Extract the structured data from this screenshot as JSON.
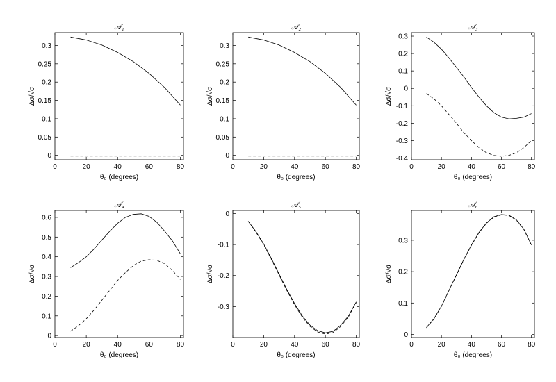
{
  "chart_data": [
    {
      "type": "line",
      "title": "𝒜₁",
      "xlabel": "θ₀ (degrees)",
      "ylabel": "Δσ/√σ",
      "xlim": [
        0,
        82
      ],
      "ylim": [
        -0.012,
        0.335
      ],
      "xticks": [
        0,
        20,
        40,
        60,
        80
      ],
      "yticks": [
        0,
        0.05,
        0.1,
        0.15,
        0.2,
        0.25,
        0.3
      ],
      "ytick_labels": [
        "0",
        "0.05",
        "0.1",
        "0.15",
        "0.2",
        "0.25",
        "0.3"
      ],
      "grid": false,
      "series": [
        {
          "style": "solid",
          "x": [
            10,
            20,
            30,
            40,
            50,
            60,
            70,
            80
          ],
          "y": [
            0.323,
            0.315,
            0.301,
            0.281,
            0.256,
            0.224,
            0.185,
            0.137
          ]
        },
        {
          "style": "dashed",
          "x": [
            10,
            80
          ],
          "y": [
            -0.002,
            -0.002
          ]
        }
      ]
    },
    {
      "type": "line",
      "title": "𝒜₂",
      "xlabel": "θ₀ (degrees)",
      "ylabel": "Δσ/√σ",
      "xlim": [
        0,
        82
      ],
      "ylim": [
        -0.012,
        0.335
      ],
      "xticks": [
        0,
        20,
        40,
        60,
        80
      ],
      "yticks": [
        0,
        0.05,
        0.1,
        0.15,
        0.2,
        0.25,
        0.3
      ],
      "ytick_labels": [
        "0",
        "0.05",
        "0.1",
        "0.15",
        "0.2",
        "0.25",
        "0.3"
      ],
      "grid": false,
      "series": [
        {
          "style": "solid",
          "x": [
            10,
            20,
            30,
            40,
            50,
            60,
            70,
            80
          ],
          "y": [
            0.323,
            0.315,
            0.301,
            0.281,
            0.256,
            0.224,
            0.185,
            0.137
          ]
        },
        {
          "style": "dashed",
          "x": [
            10,
            80
          ],
          "y": [
            -0.002,
            -0.002
          ]
        }
      ]
    },
    {
      "type": "line",
      "title": "𝒜₃",
      "xlabel": "θ₀ (degrees)",
      "ylabel": "Δσ/√σ",
      "xlim": [
        0,
        82
      ],
      "ylim": [
        -0.41,
        0.32
      ],
      "xticks": [
        0,
        20,
        40,
        60,
        80
      ],
      "yticks": [
        -0.4,
        -0.3,
        -0.2,
        -0.1,
        0,
        0.1,
        0.2,
        0.3
      ],
      "ytick_labels": [
        "-0.4",
        "-0.3",
        "-0.2",
        "-0.1",
        "0",
        "0.1",
        "0.2",
        "0.3"
      ],
      "grid": false,
      "series": [
        {
          "style": "solid",
          "x": [
            10,
            15,
            20,
            25,
            30,
            35,
            40,
            45,
            50,
            55,
            60,
            65,
            70,
            75,
            80
          ],
          "y": [
            0.295,
            0.265,
            0.225,
            0.175,
            0.12,
            0.065,
            0.005,
            -0.05,
            -0.1,
            -0.14,
            -0.165,
            -0.175,
            -0.172,
            -0.165,
            -0.145
          ]
        },
        {
          "style": "dashed",
          "x": [
            10,
            15,
            20,
            25,
            30,
            35,
            40,
            45,
            50,
            55,
            60,
            65,
            70,
            75,
            80
          ],
          "y": [
            -0.03,
            -0.06,
            -0.1,
            -0.15,
            -0.2,
            -0.255,
            -0.3,
            -0.34,
            -0.37,
            -0.385,
            -0.39,
            -0.385,
            -0.37,
            -0.34,
            -0.3
          ]
        }
      ]
    },
    {
      "type": "line",
      "title": "𝒜₄",
      "xlabel": "θ₀ (degrees)",
      "ylabel": "Δσ/√σ",
      "xlim": [
        0,
        82
      ],
      "ylim": [
        -0.01,
        0.635
      ],
      "xticks": [
        0,
        20,
        40,
        60,
        80
      ],
      "yticks": [
        0,
        0.1,
        0.2,
        0.3,
        0.4,
        0.5,
        0.6
      ],
      "ytick_labels": [
        "0",
        "0.1",
        "0.2",
        "0.3",
        "0.4",
        "0.5",
        "0.6"
      ],
      "grid": false,
      "series": [
        {
          "style": "solid",
          "x": [
            10,
            15,
            20,
            25,
            30,
            35,
            40,
            45,
            50,
            55,
            60,
            65,
            70,
            75,
            80
          ],
          "y": [
            0.345,
            0.37,
            0.4,
            0.44,
            0.485,
            0.53,
            0.57,
            0.6,
            0.615,
            0.618,
            0.605,
            0.575,
            0.53,
            0.48,
            0.415
          ]
        },
        {
          "style": "dashed",
          "x": [
            10,
            15,
            20,
            25,
            30,
            35,
            40,
            45,
            50,
            55,
            60,
            65,
            70,
            75,
            80
          ],
          "y": [
            0.022,
            0.05,
            0.085,
            0.13,
            0.18,
            0.23,
            0.28,
            0.32,
            0.355,
            0.378,
            0.385,
            0.382,
            0.365,
            0.33,
            0.285
          ]
        }
      ]
    },
    {
      "type": "line",
      "title": "𝒜₅",
      "xlabel": "θ₀ (degrees)",
      "ylabel": "Δσ/√σ",
      "xlim": [
        0,
        82
      ],
      "ylim": [
        -0.4,
        0.01
      ],
      "xticks": [
        0,
        20,
        40,
        60,
        80
      ],
      "yticks": [
        -0.3,
        -0.2,
        -0.1,
        0
      ],
      "ytick_labels": [
        "-0.3",
        "-0.2",
        "-0.1",
        "0"
      ],
      "grid": false,
      "series": [
        {
          "style": "solid",
          "x": [
            10,
            15,
            20,
            25,
            30,
            35,
            40,
            45,
            50,
            55,
            60,
            65,
            70,
            75,
            80
          ],
          "y": [
            -0.025,
            -0.058,
            -0.098,
            -0.145,
            -0.195,
            -0.245,
            -0.29,
            -0.33,
            -0.36,
            -0.378,
            -0.385,
            -0.38,
            -0.36,
            -0.33,
            -0.285
          ]
        },
        {
          "style": "dashed",
          "x": [
            10,
            15,
            20,
            25,
            30,
            35,
            40,
            45,
            50,
            55,
            60,
            65,
            70,
            75,
            80
          ],
          "y": [
            -0.025,
            -0.06,
            -0.1,
            -0.148,
            -0.198,
            -0.248,
            -0.294,
            -0.334,
            -0.364,
            -0.382,
            -0.389,
            -0.384,
            -0.364,
            -0.333,
            -0.287
          ]
        }
      ]
    },
    {
      "type": "line",
      "title": "𝒜₆",
      "xlabel": "θ₀ (degrees)",
      "ylabel": "Δσ/√σ",
      "xlim": [
        0,
        82
      ],
      "ylim": [
        -0.01,
        0.395
      ],
      "xticks": [
        0,
        20,
        40,
        60,
        80
      ],
      "yticks": [
        0,
        0.1,
        0.2,
        0.3
      ],
      "ytick_labels": [
        "0",
        "0.1",
        "0.2",
        "0.3"
      ],
      "grid": false,
      "series": [
        {
          "style": "solid",
          "x": [
            10,
            15,
            20,
            25,
            30,
            35,
            40,
            45,
            50,
            55,
            60,
            65,
            70,
            75,
            80
          ],
          "y": [
            0.022,
            0.05,
            0.09,
            0.14,
            0.19,
            0.24,
            0.285,
            0.325,
            0.355,
            0.375,
            0.382,
            0.38,
            0.365,
            0.335,
            0.285
          ]
        },
        {
          "style": "dashed",
          "x": [
            10,
            15,
            20,
            25,
            30,
            35,
            40,
            45,
            50,
            55,
            60,
            65,
            70,
            75,
            80
          ],
          "y": [
            0.021,
            0.049,
            0.089,
            0.139,
            0.189,
            0.239,
            0.284,
            0.324,
            0.354,
            0.374,
            0.381,
            0.379,
            0.364,
            0.334,
            0.284
          ]
        }
      ]
    }
  ]
}
